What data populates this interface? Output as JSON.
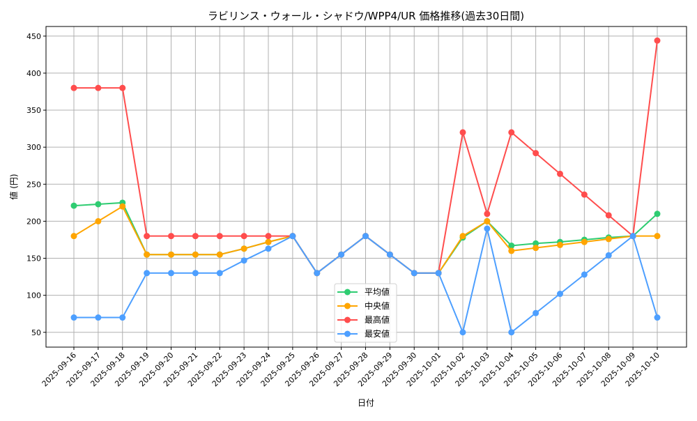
{
  "chart_data": {
    "type": "line",
    "title": "ラビリンス・ウォール・シャドウ/WPP4/UR 価格推移(過去30日間)",
    "xlabel": "日付",
    "ylabel": "値 (円)",
    "ylim": [
      30,
      463
    ],
    "yticks": [
      50,
      100,
      150,
      200,
      250,
      300,
      350,
      400,
      450
    ],
    "grid": true,
    "legend_position": "bottom-center",
    "x": [
      "2025-09-16",
      "2025-09-17",
      "2025-09-18",
      "2025-09-19",
      "2025-09-20",
      "2025-09-21",
      "2025-09-22",
      "2025-09-23",
      "2025-09-24",
      "2025-09-25",
      "2025-09-26",
      "2025-09-27",
      "2025-09-28",
      "2025-09-29",
      "2025-09-30",
      "2025-10-01",
      "2025-10-02",
      "2025-10-03",
      "2025-10-04",
      "2025-10-05",
      "2025-10-06",
      "2025-10-07",
      "2025-10-08",
      "2025-10-09",
      "2025-10-10"
    ],
    "series": [
      {
        "name": "平均値",
        "color": "#2ecc71",
        "values": [
          221,
          223,
          225,
          155,
          155,
          155,
          155,
          163,
          172,
          180,
          130,
          155,
          180,
          155,
          130,
          130,
          178,
          200,
          167,
          170,
          172,
          175,
          178,
          180,
          210
        ]
      },
      {
        "name": "中央値",
        "color": "#ffa500",
        "values": [
          180,
          200,
          220,
          155,
          155,
          155,
          155,
          163,
          172,
          180,
          130,
          155,
          180,
          155,
          130,
          130,
          180,
          200,
          160,
          164,
          168,
          172,
          176,
          180,
          180
        ]
      },
      {
        "name": "最高値",
        "color": "#ff4d4d",
        "values": [
          380,
          380,
          380,
          180,
          180,
          180,
          180,
          180,
          180,
          180,
          130,
          155,
          180,
          155,
          130,
          130,
          320,
          210,
          320,
          292,
          264,
          236,
          208,
          180,
          444
        ]
      },
      {
        "name": "最安値",
        "color": "#4d9fff",
        "values": [
          70,
          70,
          70,
          130,
          130,
          130,
          130,
          147,
          163,
          180,
          130,
          155,
          180,
          155,
          130,
          130,
          50,
          190,
          50,
          76,
          102,
          128,
          154,
          180,
          70
        ]
      }
    ]
  }
}
